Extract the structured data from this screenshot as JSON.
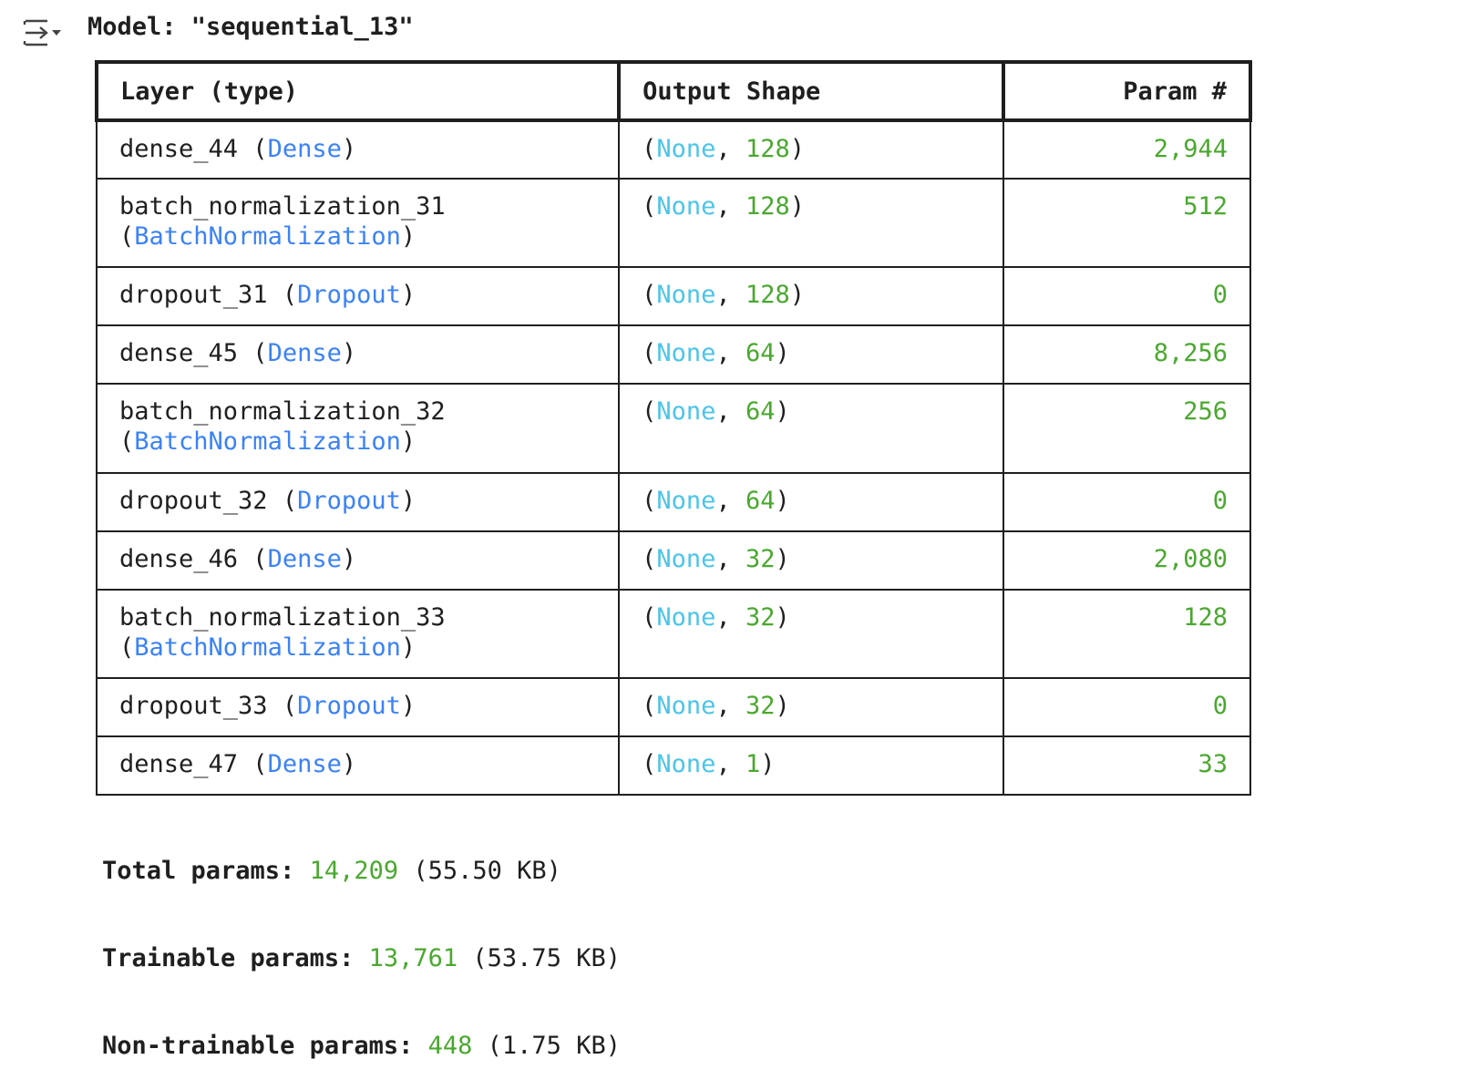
{
  "toolbar": {
    "icon": "collapse-output-icon"
  },
  "model": {
    "title": "Model: \"sequential_13\""
  },
  "table": {
    "headers": [
      "Layer (type)",
      "Output Shape",
      "Param #"
    ],
    "rows": [
      {
        "name": "dense_44",
        "type": "Dense",
        "wrap": false,
        "shape_none": "None",
        "shape_dim": "128",
        "params": "2,944"
      },
      {
        "name": "batch_normalization_31",
        "type": "BatchNormalization",
        "wrap": true,
        "shape_none": "None",
        "shape_dim": "128",
        "params": "512"
      },
      {
        "name": "dropout_31",
        "type": "Dropout",
        "wrap": false,
        "shape_none": "None",
        "shape_dim": "128",
        "params": "0"
      },
      {
        "name": "dense_45",
        "type": "Dense",
        "wrap": false,
        "shape_none": "None",
        "shape_dim": "64",
        "params": "8,256"
      },
      {
        "name": "batch_normalization_32",
        "type": "BatchNormalization",
        "wrap": true,
        "shape_none": "None",
        "shape_dim": "64",
        "params": "256"
      },
      {
        "name": "dropout_32",
        "type": "Dropout",
        "wrap": false,
        "shape_none": "None",
        "shape_dim": "64",
        "params": "0"
      },
      {
        "name": "dense_46",
        "type": "Dense",
        "wrap": false,
        "shape_none": "None",
        "shape_dim": "32",
        "params": "2,080"
      },
      {
        "name": "batch_normalization_33",
        "type": "BatchNormalization",
        "wrap": true,
        "shape_none": "None",
        "shape_dim": "32",
        "params": "128"
      },
      {
        "name": "dropout_33",
        "type": "Dropout",
        "wrap": false,
        "shape_none": "None",
        "shape_dim": "32",
        "params": "0"
      },
      {
        "name": "dense_47",
        "type": "Dense",
        "wrap": false,
        "shape_none": "None",
        "shape_dim": "1",
        "params": "33"
      }
    ]
  },
  "totals": {
    "total": {
      "label": "Total params: ",
      "count": "14,209",
      "size": " (55.50 KB)"
    },
    "trainable": {
      "label": "Trainable params: ",
      "count": "13,761",
      "size": " (53.75 KB)"
    },
    "non_trainable": {
      "label": "Non-trainable params: ",
      "count": "448",
      "size": " (1.75 KB)"
    }
  },
  "colors": {
    "type": "#3b82f6",
    "none": "#4cc4e8",
    "number": "#4aa82f",
    "text": "#1f1f1f"
  }
}
